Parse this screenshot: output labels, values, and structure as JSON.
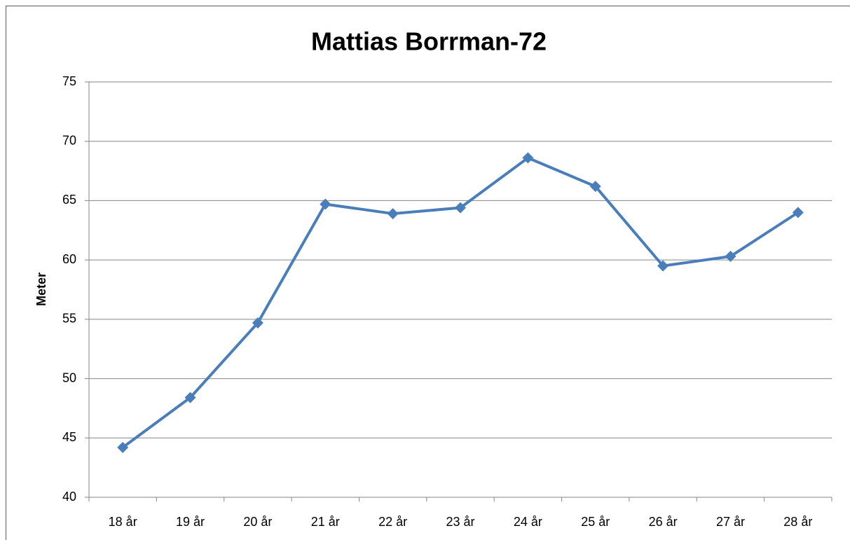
{
  "chart_data": {
    "type": "line",
    "title": "Mattias Borrman-72",
    "y_label": "Meter",
    "categories": [
      "18 år",
      "19 år",
      "20 år",
      "21 år",
      "22 år",
      "23 år",
      "24 år",
      "25 år",
      "26 år",
      "27 år",
      "28 år"
    ],
    "series": [
      {
        "name": "Meter",
        "color": "#4a7ebb",
        "values": [
          44.2,
          48.4,
          54.7,
          64.7,
          63.9,
          64.4,
          68.6,
          66.2,
          59.5,
          60.3,
          64.0
        ]
      }
    ],
    "ylim": [
      40,
      75
    ],
    "yticks": [
      40,
      45,
      50,
      55,
      60,
      65,
      70,
      75
    ],
    "grid": true,
    "legend": false
  }
}
